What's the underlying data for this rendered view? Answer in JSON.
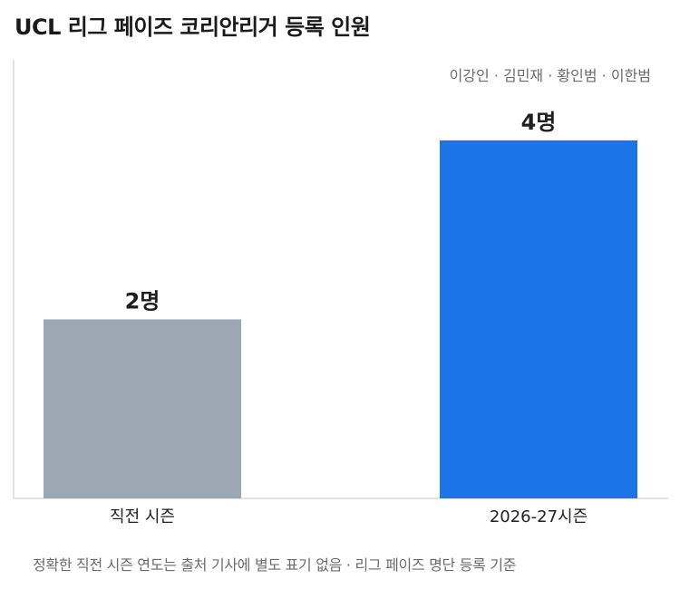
{
  "title": "UCL 리그 페이즈 코리안리거 등록 인원",
  "footnote": "정확한 직전 시즌 연도는 출처 기사에 별도 표기 없음 · 리그 페이즈 명단 등록 기준",
  "colors": {
    "previous": "#9ba8b4",
    "current": "#1b74e8",
    "axis": "#d9d9d9"
  },
  "chart_data": {
    "type": "bar",
    "categories": [
      "직전 시즌",
      "2026-27시즌"
    ],
    "values": [
      2,
      4
    ],
    "value_labels": [
      "2명",
      "4명"
    ],
    "annotations": [
      {
        "category": "2026-27시즌",
        "text": "이강인 · 김민재 · 황인범 · 이한범"
      }
    ],
    "ylim": [
      0,
      4.9
    ],
    "grid": false,
    "title": "UCL 리그 페이즈 코리안리거 등록 인원"
  }
}
